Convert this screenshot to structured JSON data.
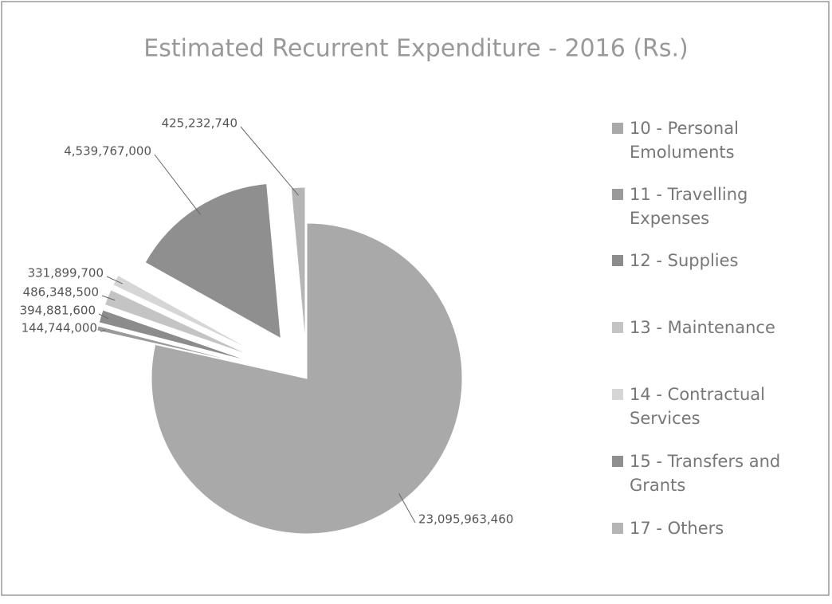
{
  "chart_data": {
    "type": "pie",
    "title": "Estimated Recurrent Expenditure  - 2016 (Rs.)",
    "categories": [
      "10 - Personal Emoluments",
      "11 - Travelling Expenses",
      "12 - Supplies",
      "13 - Maintenance",
      "14 - Contractual Services",
      "15 - Transfers and Grants",
      "17 - Others"
    ],
    "values": [
      23095963460,
      144744000,
      394881600,
      486348500,
      331899700,
      4539767000,
      425232740
    ],
    "value_labels": [
      "23,095,963,460",
      "144,744,000",
      "394,881,600",
      "486,348,500",
      "331,899,700",
      "4,539,767,000",
      "425,232,740"
    ],
    "colors": [
      "#a9a9a9",
      "#9a9a9a",
      "#8c8c8c",
      "#c4c4c4",
      "#d6d6d6",
      "#8f8f8f",
      "#b5b5b5"
    ],
    "legend": "right"
  }
}
